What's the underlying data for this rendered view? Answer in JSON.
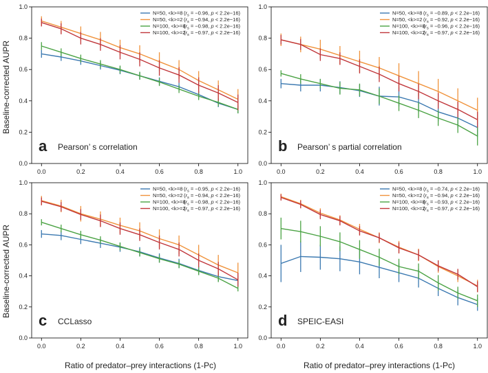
{
  "figure": {
    "ylabel": "Baseline-corrected AUPR",
    "xlabel": "Ratio of predator–prey interactions (1-Pc)"
  },
  "colors": {
    "N50_8": "#3a78b0",
    "N50_2": "#f0923a",
    "N100_8": "#4aa243",
    "N100_2": "#c0363a"
  },
  "chart_data": [
    {
      "type": "line",
      "panel": "a",
      "title": "Pearson’ s correlation",
      "x": [
        0.0,
        0.1,
        0.2,
        0.3,
        0.4,
        0.5,
        0.6,
        0.7,
        0.8,
        0.9,
        1.0
      ],
      "xticks": [
        "0.0",
        "0.2",
        "0.4",
        "0.6",
        "0.8",
        "1.0"
      ],
      "yticks": [
        "0.0",
        "0.2",
        "0.4",
        "0.6",
        "0.8",
        "1.0"
      ],
      "ylim": [
        0,
        1
      ],
      "xlim": [
        -0.05,
        1.05
      ],
      "series": [
        {
          "name": "N=50, <k>=8",
          "stat": "(rs = −0.96, p < 2.2e−16)",
          "color_key": "N50_8",
          "values": [
            0.7,
            0.68,
            0.655,
            0.625,
            0.595,
            0.56,
            0.525,
            0.49,
            0.44,
            0.385,
            0.345
          ],
          "err": [
            0.025,
            0.025,
            0.025,
            0.025,
            0.025,
            0.025,
            0.025,
            0.025,
            0.025,
            0.025,
            0.025
          ]
        },
        {
          "name": "N=50, <k>=2",
          "stat": "(rs = −0.94, p < 2.2e−16)",
          "color_key": "N50_2",
          "values": [
            0.91,
            0.87,
            0.83,
            0.79,
            0.74,
            0.7,
            0.65,
            0.6,
            0.53,
            0.47,
            0.41
          ],
          "err": [
            0.03,
            0.04,
            0.045,
            0.05,
            0.05,
            0.055,
            0.06,
            0.06,
            0.06,
            0.06,
            0.065
          ]
        },
        {
          "name": "N=100, <k>=8",
          "stat": "(rs = −0.98, p < 2.2e−16)",
          "color_key": "N100_8",
          "values": [
            0.75,
            0.71,
            0.67,
            0.635,
            0.6,
            0.56,
            0.52,
            0.475,
            0.43,
            0.39,
            0.345
          ],
          "err": [
            0.025,
            0.025,
            0.025,
            0.025,
            0.025,
            0.025,
            0.025,
            0.025,
            0.025,
            0.025,
            0.025
          ]
        },
        {
          "name": "N=100, <k>=2",
          "stat": "(rs = −0.97, p < 2.2e−16)",
          "color_key": "N100_2",
          "values": [
            0.9,
            0.86,
            0.8,
            0.76,
            0.71,
            0.665,
            0.61,
            0.565,
            0.5,
            0.45,
            0.39
          ],
          "err": [
            0.025,
            0.035,
            0.04,
            0.04,
            0.045,
            0.045,
            0.05,
            0.05,
            0.05,
            0.05,
            0.05
          ]
        }
      ]
    },
    {
      "type": "line",
      "panel": "b",
      "title": "Pearson’ s partial correlation",
      "x": [
        0.0,
        0.1,
        0.2,
        0.3,
        0.4,
        0.5,
        0.6,
        0.7,
        0.8,
        0.9,
        1.0
      ],
      "xticks": [
        "0.0",
        "0.2",
        "0.4",
        "0.6",
        "0.8",
        "1.0"
      ],
      "yticks": [
        "0.0",
        "0.2",
        "0.4",
        "0.6",
        "0.8",
        "1.0"
      ],
      "ylim": [
        0,
        1
      ],
      "xlim": [
        -0.05,
        1.05
      ],
      "series": [
        {
          "name": "N=50, <k>=8",
          "stat": "(rs = −0.89, p < 2.2e−16)",
          "color_key": "N50_8",
          "values": [
            0.51,
            0.5,
            0.5,
            0.485,
            0.465,
            0.43,
            0.425,
            0.39,
            0.33,
            0.29,
            0.23
          ],
          "err": [
            0.03,
            0.04,
            0.04,
            0.04,
            0.04,
            0.06,
            0.06,
            0.06,
            0.06,
            0.06,
            0.06
          ]
        },
        {
          "name": "N=50, <k>=2",
          "stat": "(rs = −0.92, p < 2.2e−16)",
          "color_key": "N50_2",
          "values": [
            0.79,
            0.76,
            0.73,
            0.69,
            0.65,
            0.61,
            0.56,
            0.51,
            0.46,
            0.4,
            0.34
          ],
          "err": [
            0.04,
            0.05,
            0.06,
            0.06,
            0.07,
            0.07,
            0.08,
            0.08,
            0.08,
            0.08,
            0.08
          ]
        },
        {
          "name": "N=100, <k>=8",
          "stat": "(rs = −0.96, p < 2.2e−16)",
          "color_key": "N100_8",
          "values": [
            0.575,
            0.54,
            0.51,
            0.48,
            0.47,
            0.43,
            0.385,
            0.34,
            0.29,
            0.245,
            0.175
          ],
          "err": [
            0.02,
            0.03,
            0.03,
            0.04,
            0.04,
            0.05,
            0.05,
            0.05,
            0.05,
            0.05,
            0.06
          ]
        },
        {
          "name": "N=100, <k>=2",
          "stat": "(rs = −0.97, p < 2.2e−16)",
          "color_key": "N100_2",
          "values": [
            0.79,
            0.76,
            0.695,
            0.67,
            0.62,
            0.57,
            0.51,
            0.46,
            0.4,
            0.345,
            0.28
          ],
          "err": [
            0.03,
            0.035,
            0.04,
            0.04,
            0.045,
            0.05,
            0.05,
            0.05,
            0.05,
            0.05,
            0.05
          ]
        }
      ]
    },
    {
      "type": "line",
      "panel": "c",
      "title": "CCLasso",
      "x": [
        0.0,
        0.1,
        0.2,
        0.3,
        0.4,
        0.5,
        0.6,
        0.7,
        0.8,
        0.9,
        1.0
      ],
      "xticks": [
        "0.0",
        "0.2",
        "0.4",
        "0.6",
        "0.8",
        "1.0"
      ],
      "yticks": [
        "0.0",
        "0.2",
        "0.4",
        "0.6",
        "0.8",
        "1.0"
      ],
      "ylim": [
        0,
        1
      ],
      "xlim": [
        -0.05,
        1.05
      ],
      "series": [
        {
          "name": "N=50, <k>=8",
          "stat": "(rs = −0.95, p < 2.2e−16)",
          "color_key": "N50_8",
          "values": [
            0.67,
            0.66,
            0.635,
            0.61,
            0.585,
            0.555,
            0.515,
            0.48,
            0.435,
            0.395,
            0.37
          ],
          "err": [
            0.025,
            0.03,
            0.03,
            0.03,
            0.03,
            0.03,
            0.03,
            0.03,
            0.03,
            0.03,
            0.03
          ]
        },
        {
          "name": "N=50, <k>=2",
          "stat": "(rs = −0.94, p < 2.2e−16)",
          "color_key": "N50_2",
          "values": [
            0.885,
            0.85,
            0.8,
            0.765,
            0.725,
            0.69,
            0.64,
            0.6,
            0.535,
            0.47,
            0.42
          ],
          "err": [
            0.03,
            0.04,
            0.05,
            0.05,
            0.05,
            0.055,
            0.06,
            0.06,
            0.065,
            0.065,
            0.065
          ]
        },
        {
          "name": "N=100, <k>=8",
          "stat": "(rs = −0.98, p < 2.2e−16)",
          "color_key": "N100_8",
          "values": [
            0.745,
            0.705,
            0.665,
            0.63,
            0.59,
            0.55,
            0.51,
            0.475,
            0.43,
            0.385,
            0.32
          ],
          "err": [
            0.02,
            0.025,
            0.025,
            0.025,
            0.025,
            0.025,
            0.025,
            0.025,
            0.025,
            0.025,
            0.02
          ]
        },
        {
          "name": "N=100, <k>=2",
          "stat": "(rs = −0.97, p < 2.2e−16)",
          "color_key": "N100_2",
          "values": [
            0.88,
            0.845,
            0.795,
            0.755,
            0.705,
            0.665,
            0.615,
            0.57,
            0.5,
            0.445,
            0.375
          ],
          "err": [
            0.025,
            0.03,
            0.035,
            0.04,
            0.04,
            0.04,
            0.045,
            0.045,
            0.045,
            0.045,
            0.045
          ]
        }
      ]
    },
    {
      "type": "line",
      "panel": "d",
      "title": "SPEIC-EASI",
      "x": [
        0.0,
        0.1,
        0.2,
        0.3,
        0.4,
        0.5,
        0.6,
        0.7,
        0.8,
        0.9,
        1.0
      ],
      "xticks": [
        "0.0",
        "0.2",
        "0.4",
        "0.6",
        "0.8",
        "1.0"
      ],
      "yticks": [
        "0.0",
        "0.2",
        "0.4",
        "0.6",
        "0.8",
        "1.0"
      ],
      "ylim": [
        0,
        1
      ],
      "xlim": [
        -0.05,
        1.05
      ],
      "series": [
        {
          "name": "N=50, <k>=8",
          "stat": "(rs = −0.74, p < 2.2e−16)",
          "color_key": "N50_8",
          "values": [
            0.48,
            0.525,
            0.52,
            0.51,
            0.49,
            0.455,
            0.42,
            0.385,
            0.32,
            0.26,
            0.215
          ],
          "err": [
            0.12,
            0.1,
            0.08,
            0.08,
            0.08,
            0.07,
            0.06,
            0.06,
            0.05,
            0.05,
            0.04
          ]
        },
        {
          "name": "N=50, <k>=2",
          "stat": "(rs = −0.94, p < 2.2e−16)",
          "color_key": "N50_2",
          "values": [
            0.91,
            0.865,
            0.805,
            0.76,
            0.7,
            0.645,
            0.585,
            0.535,
            0.46,
            0.4,
            0.335
          ],
          "err": [
            0.02,
            0.025,
            0.03,
            0.03,
            0.035,
            0.035,
            0.04,
            0.04,
            0.04,
            0.04,
            0.04
          ]
        },
        {
          "name": "N=100, <k>=8",
          "stat": "(rs = −0.93, p < 2.2e−16)",
          "color_key": "N100_8",
          "values": [
            0.705,
            0.685,
            0.655,
            0.62,
            0.57,
            0.52,
            0.46,
            0.43,
            0.355,
            0.29,
            0.24
          ],
          "err": [
            0.07,
            0.07,
            0.065,
            0.06,
            0.06,
            0.055,
            0.05,
            0.05,
            0.05,
            0.04,
            0.04
          ]
        },
        {
          "name": "N=100, <k>=2",
          "stat": "(rs = −0.97, p < 2.2e−16)",
          "color_key": "N100_2",
          "values": [
            0.905,
            0.86,
            0.795,
            0.755,
            0.69,
            0.645,
            0.58,
            0.535,
            0.465,
            0.41,
            0.33
          ],
          "err": [
            0.02,
            0.025,
            0.03,
            0.03,
            0.03,
            0.03,
            0.035,
            0.035,
            0.035,
            0.035,
            0.035
          ]
        }
      ]
    }
  ]
}
